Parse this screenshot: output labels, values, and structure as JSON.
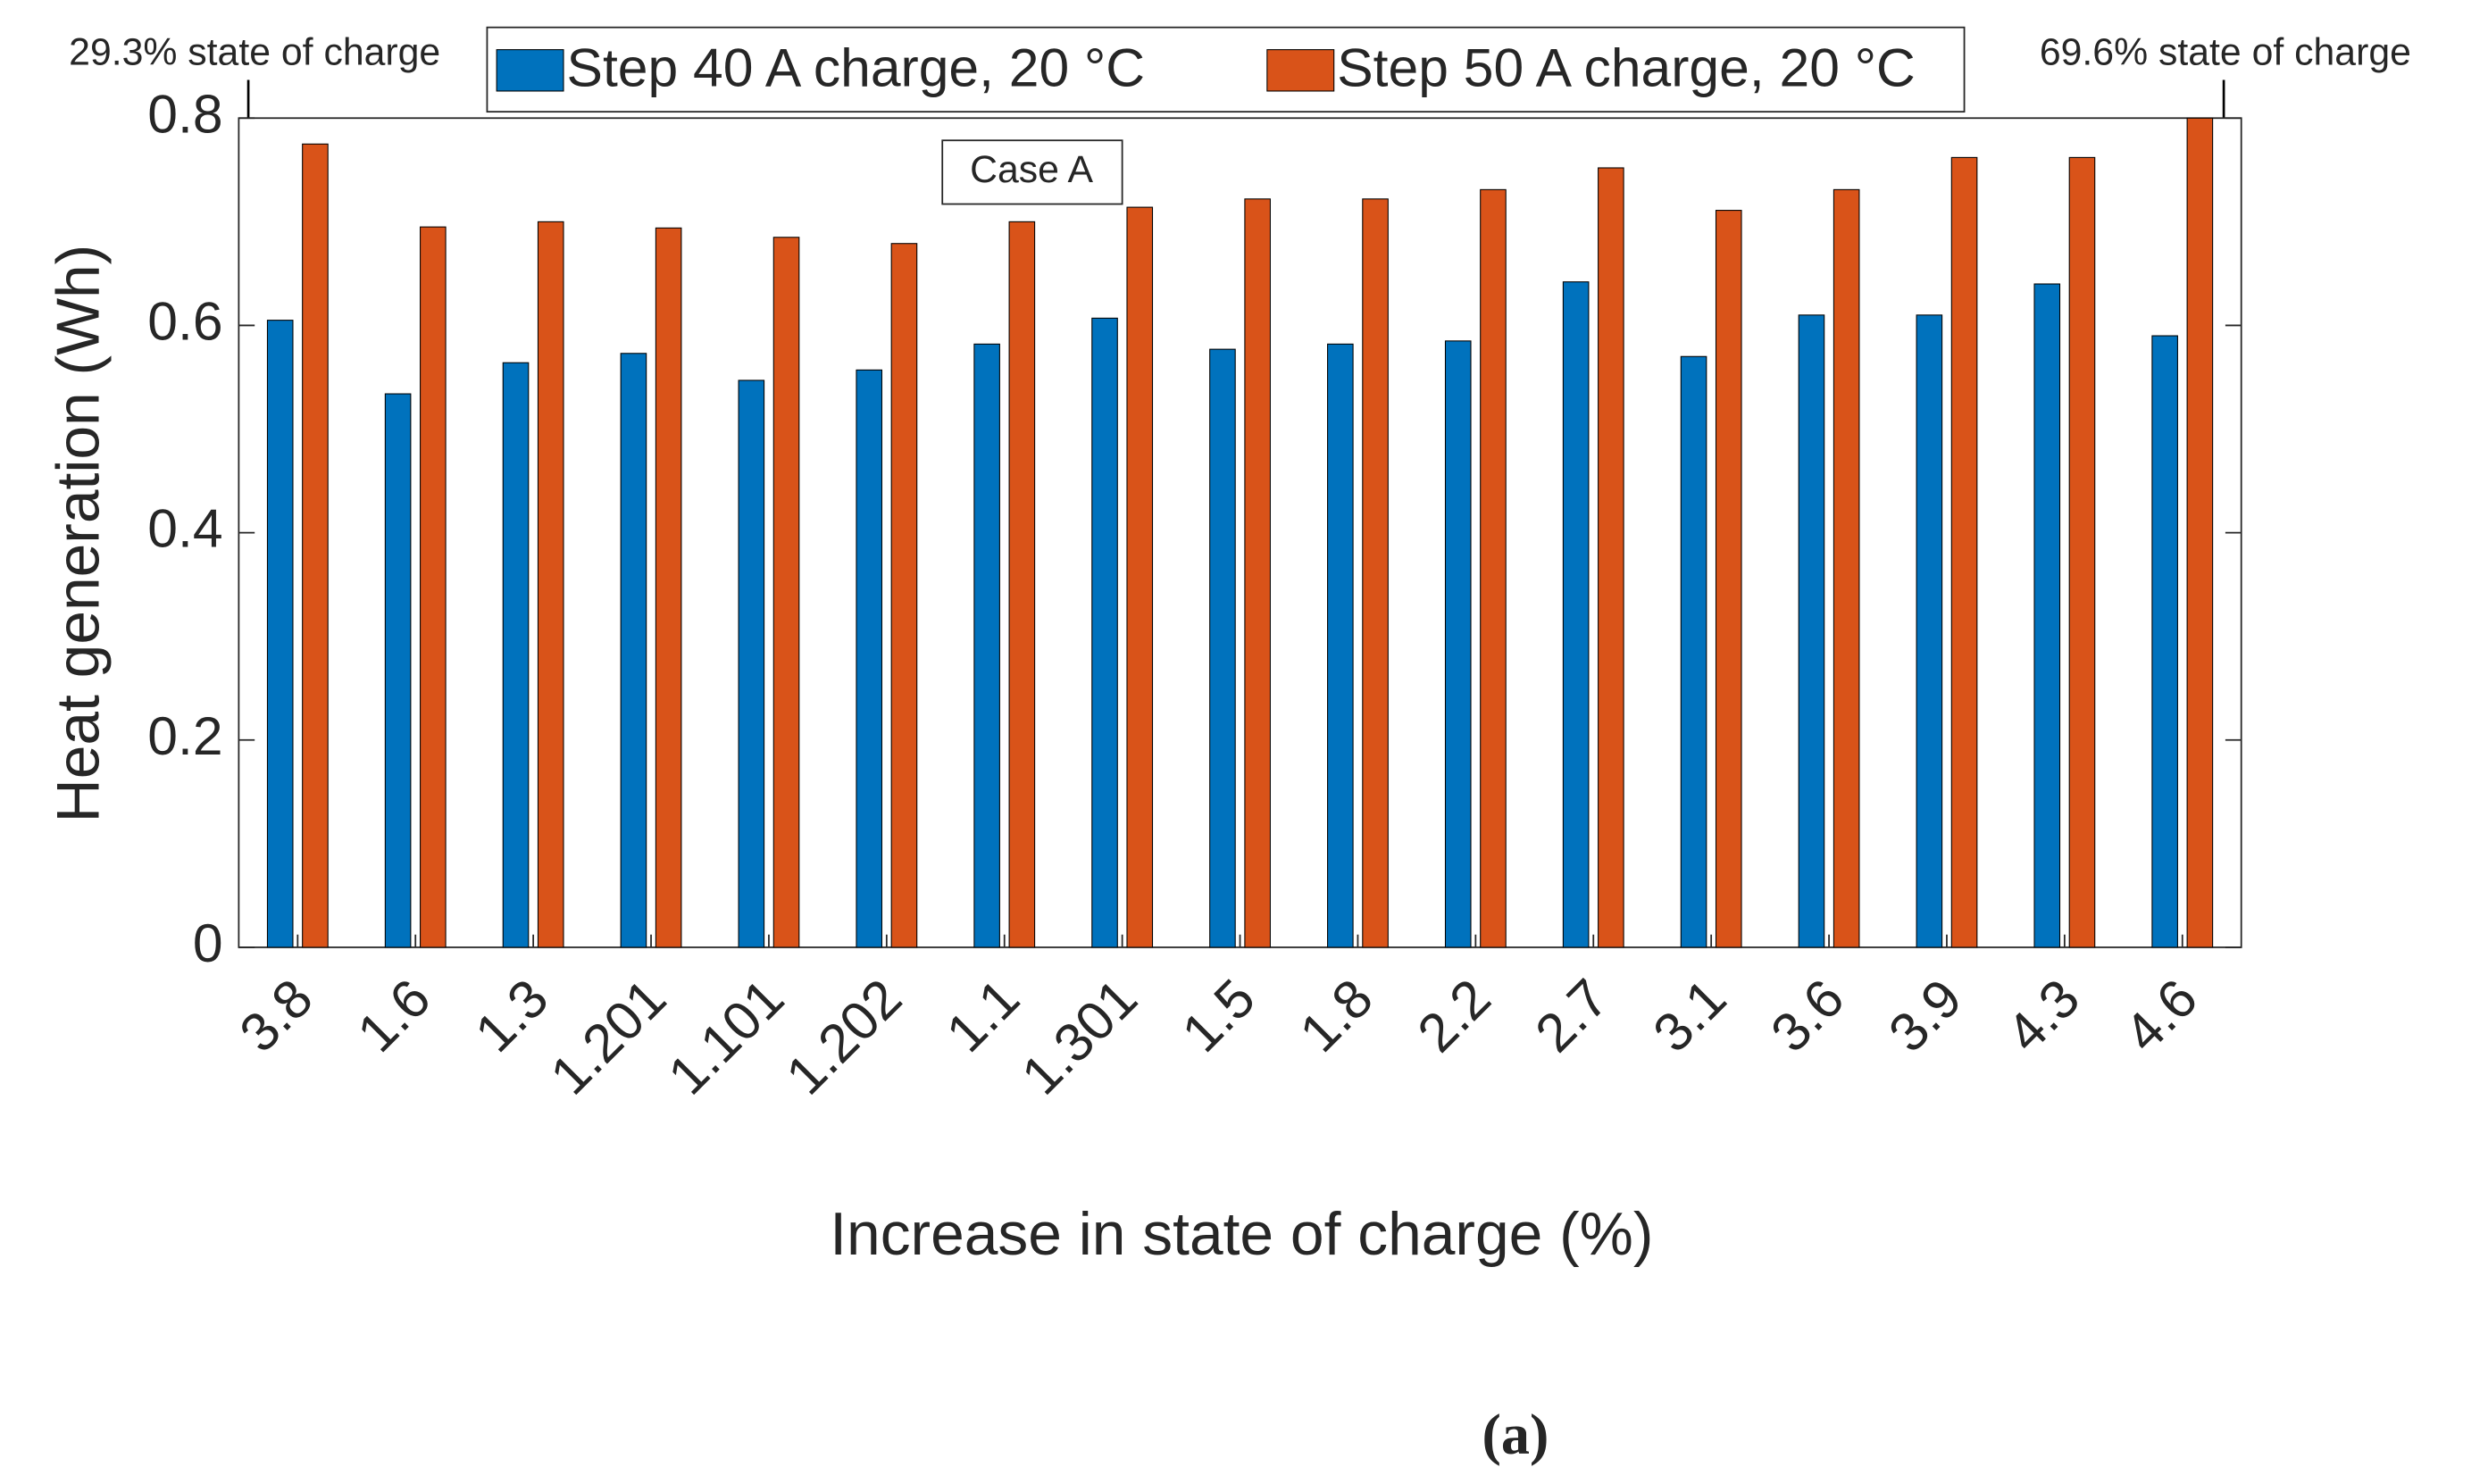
{
  "chart_data": {
    "type": "bar",
    "x_label": "Increase in state of charge (%)",
    "y_label": "Heat generation (Wh)",
    "annotations": [
      "29.3% state of charge",
      "69.6% state of charge",
      "Case A"
    ],
    "caption": "(a)",
    "categories": [
      "3.8",
      "1.6",
      "1.3",
      "1.201",
      "1.101",
      "1.202",
      "1.1",
      "1.301",
      "1.5",
      "1.8",
      "2.2",
      "2.7",
      "3.1",
      "3.6",
      "3.9",
      "4.3",
      "4.6"
    ],
    "series": [
      {
        "name": "Step 40 A charge, 20 °C",
        "color": "#0072bd",
        "values": [
          0.605,
          0.534,
          0.564,
          0.573,
          0.547,
          0.557,
          0.582,
          0.607,
          0.577,
          0.582,
          0.585,
          0.642,
          0.57,
          0.61,
          0.61,
          0.64,
          0.59
        ]
      },
      {
        "name": "Step 50 A charge, 20 °C",
        "color": "#d95319",
        "values": [
          0.775,
          0.695,
          0.7,
          0.694,
          0.685,
          0.679,
          0.7,
          0.714,
          0.722,
          0.722,
          0.731,
          0.752,
          0.711,
          0.731,
          0.762,
          0.762,
          0.8
        ]
      }
    ],
    "ylim": [
      0,
      0.8
    ],
    "yticks": [
      0,
      0.2,
      0.4,
      0.6,
      0.8
    ],
    "legend": "top"
  }
}
